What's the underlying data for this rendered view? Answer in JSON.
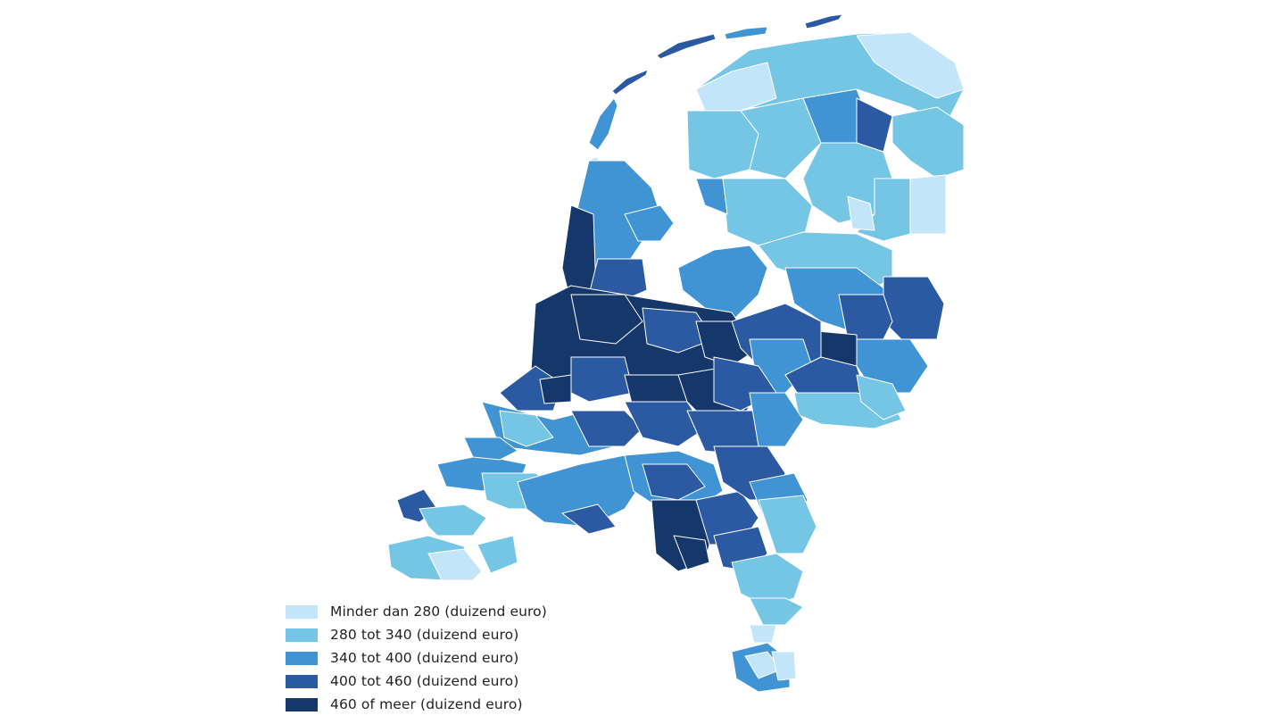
{
  "map": {
    "region": "Netherlands municipalities",
    "border_color": "#ffffff"
  },
  "legend": {
    "items": [
      {
        "label": "Minder dan 280 (duizend euro)",
        "color": "#c3e5fa"
      },
      {
        "label": "280 tot 340 (duizend euro)",
        "color": "#74c6e4"
      },
      {
        "label": "340 tot 400 (duizend euro)",
        "color": "#4194d3"
      },
      {
        "label": "400 tot 460 (duizend euro)",
        "color": "#2b5aa3"
      },
      {
        "label": "460 of meer (duizend euro)",
        "color": "#15376a"
      }
    ]
  }
}
